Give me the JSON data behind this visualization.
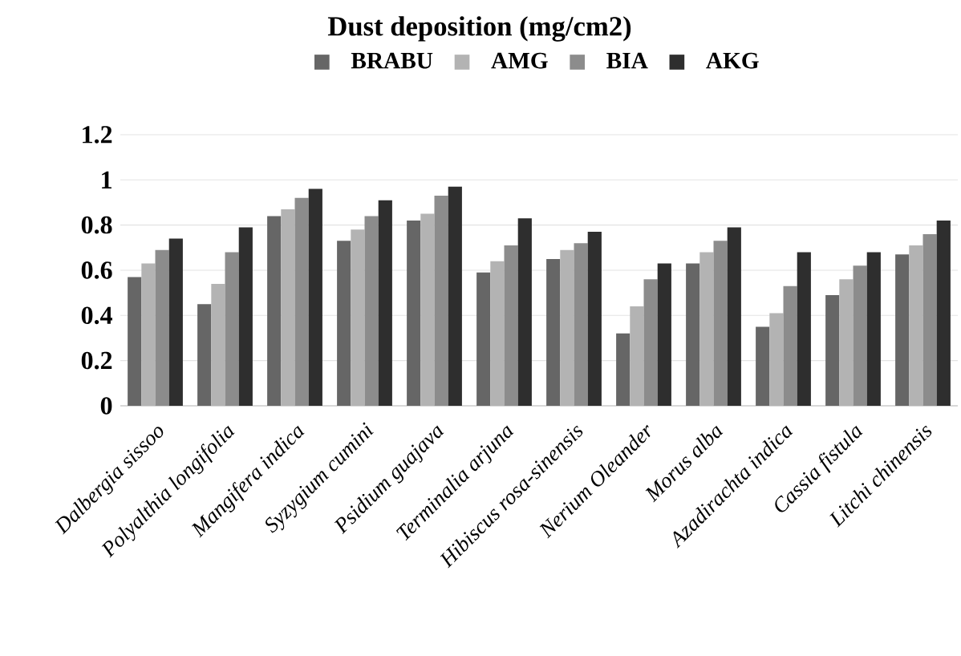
{
  "chart_data": {
    "type": "bar",
    "title": "Dust deposition (mg/cm2)",
    "categories": [
      "Dalbergia sissoo",
      "Polyalthia longifolia",
      "Mangifera indica",
      "Syzygium cumini",
      "Psidium guajava",
      "Terminalia arjuna",
      "Hibiscus rosa-sinensis",
      "Nerium Oleander",
      "Morus alba",
      "Azadirachta indica",
      "Cassia fistula",
      "Litchi chinensis"
    ],
    "series": [
      {
        "name": "BRABU",
        "color": "#666666",
        "values": [
          0.57,
          0.45,
          0.84,
          0.73,
          0.82,
          0.59,
          0.65,
          0.32,
          0.63,
          0.35,
          0.49,
          0.67
        ]
      },
      {
        "name": "AMG",
        "color": "#b3b3b3",
        "values": [
          0.63,
          0.54,
          0.87,
          0.78,
          0.85,
          0.64,
          0.69,
          0.44,
          0.68,
          0.41,
          0.56,
          0.71
        ]
      },
      {
        "name": "BIA",
        "color": "#8c8c8c",
        "values": [
          0.69,
          0.68,
          0.92,
          0.84,
          0.93,
          0.71,
          0.72,
          0.56,
          0.73,
          0.53,
          0.62,
          0.76
        ]
      },
      {
        "name": "AKG",
        "color": "#2e2e2e",
        "values": [
          0.74,
          0.79,
          0.96,
          0.91,
          0.97,
          0.83,
          0.77,
          0.63,
          0.79,
          0.68,
          0.68,
          0.82
        ]
      }
    ],
    "ylim": [
      0,
      1.2
    ],
    "yticks": [
      0,
      0.2,
      0.4,
      0.6,
      0.8,
      1,
      1.2
    ],
    "grid": "y",
    "legend": "top"
  }
}
